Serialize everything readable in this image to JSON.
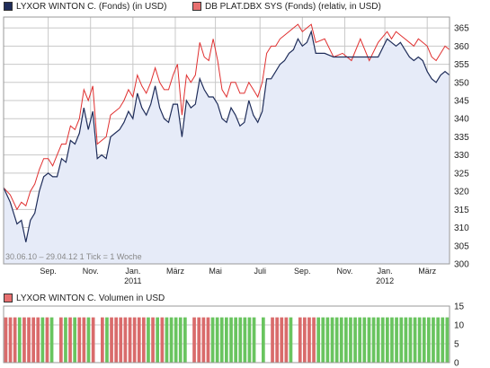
{
  "legend": {
    "series1": "LYXOR WINTON C. (Fonds) (in USD)",
    "series2": "DB PLAT.DBX SYS (Fonds) (relativ, in USD)",
    "volume": "LYXOR WINTON C. Volumen in USD"
  },
  "note": "30.06.10 – 29.04.12   1 Tick = 1 Woche",
  "colors": {
    "series1": "#1f2d5a",
    "series2": "#e03030",
    "area": "#e6ebf8",
    "vol_green": "#69c45f",
    "vol_red": "#d96b6b",
    "grid": "#bbbbbb"
  },
  "chart_data": [
    {
      "type": "line",
      "ylim": [
        300,
        368
      ],
      "yticks": [
        300,
        305,
        310,
        315,
        320,
        325,
        330,
        335,
        340,
        345,
        350,
        355,
        360,
        365
      ],
      "xlim": [
        0,
        100
      ],
      "xticks": [
        {
          "x": 10,
          "label": "Sep."
        },
        {
          "x": 19.5,
          "label": "Nov."
        },
        {
          "x": 29,
          "label": "Jan.",
          "year": "2011"
        },
        {
          "x": 38.5,
          "label": "März"
        },
        {
          "x": 47.5,
          "label": "Mai"
        },
        {
          "x": 57.5,
          "label": "Juli"
        },
        {
          "x": 67,
          "label": "Sep."
        },
        {
          "x": 76.5,
          "label": "Nov."
        },
        {
          "x": 85.5,
          "label": "Jan.",
          "year": "2012"
        },
        {
          "x": 95,
          "label": "März"
        }
      ],
      "grid": true,
      "series": [
        {
          "name": "LYXOR WINTON C. (Fonds) (in USD)",
          "x": [
            0,
            1.5,
            3,
            4,
            5,
            6,
            7,
            8,
            9,
            10,
            11,
            12,
            13,
            14,
            15,
            16,
            17,
            18,
            19,
            20,
            21,
            22,
            23,
            24,
            25,
            26,
            27,
            28,
            29,
            30,
            31,
            32,
            33,
            34,
            35,
            36,
            37,
            38,
            39,
            40,
            41,
            42,
            43,
            44,
            45,
            46,
            47,
            48,
            49,
            50,
            51,
            52,
            53,
            54,
            55,
            56,
            57,
            58,
            59,
            60,
            61,
            62,
            63,
            64,
            65,
            66,
            67,
            68,
            69,
            70,
            72,
            74,
            76,
            78,
            80,
            82,
            84,
            86,
            87,
            88,
            89,
            90,
            91,
            92,
            93,
            94,
            95,
            96,
            97,
            98,
            99,
            100
          ],
          "values": [
            321,
            317,
            311,
            312,
            306,
            312,
            314,
            320,
            324,
            325,
            324,
            324,
            329,
            328,
            334,
            333,
            336,
            343,
            337,
            342,
            329,
            330,
            329,
            335,
            336,
            337,
            339,
            342,
            340,
            347,
            343,
            341,
            344,
            349,
            343,
            340,
            339,
            344,
            344,
            335,
            345,
            343,
            344,
            351,
            348,
            346,
            346,
            344,
            340,
            339,
            343,
            341,
            338,
            339,
            345,
            341,
            339,
            342,
            351,
            351,
            353,
            355,
            356,
            358,
            359,
            362,
            360,
            361,
            364,
            358,
            358,
            357,
            357,
            357,
            357,
            357,
            357,
            362,
            361,
            360,
            361,
            359,
            357,
            356,
            357,
            356,
            353,
            351,
            350,
            352,
            353,
            352
          ]
        },
        {
          "name": "DB PLAT.DBX SYS (Fonds) (relativ, in USD)",
          "x": [
            0,
            1.5,
            3,
            4,
            5,
            6,
            7,
            8,
            9,
            10,
            11,
            12,
            13,
            14,
            15,
            16,
            17,
            18,
            19,
            20,
            21,
            22,
            23,
            24,
            25,
            26,
            27,
            28,
            29,
            30,
            31,
            32,
            33,
            34,
            35,
            36,
            37,
            38,
            39,
            40,
            41,
            42,
            43,
            44,
            45,
            46,
            47,
            48,
            49,
            50,
            51,
            52,
            53,
            54,
            55,
            56,
            57,
            58,
            59,
            60,
            61,
            62,
            63,
            64,
            65,
            66,
            67,
            68,
            69,
            70,
            72,
            74,
            76,
            78,
            80,
            82,
            84,
            86,
            87,
            88,
            89,
            90,
            91,
            92,
            93,
            94,
            95,
            96,
            97,
            98,
            99,
            100
          ],
          "values": [
            321,
            319,
            315,
            317,
            316,
            320,
            322,
            326,
            329,
            329,
            327,
            330,
            333,
            333,
            338,
            337,
            340,
            348,
            345,
            349,
            333,
            334,
            335,
            341,
            342,
            343,
            345,
            348,
            346,
            352,
            349,
            347,
            350,
            354,
            350,
            348,
            348,
            352,
            355,
            341,
            352,
            350,
            352,
            361,
            357,
            356,
            362,
            356,
            348,
            346,
            350,
            350,
            347,
            347,
            350,
            348,
            346,
            350,
            358,
            360,
            360,
            362,
            363,
            364,
            365,
            366,
            364,
            365,
            366,
            361,
            362,
            357,
            358,
            356,
            362,
            356,
            361,
            364,
            362,
            364,
            363,
            362,
            361,
            360,
            362,
            361,
            360,
            357,
            356,
            358,
            360,
            359
          ]
        }
      ]
    },
    {
      "type": "bar",
      "title": "LYXOR WINTON C. Volumen in USD",
      "ylim": [
        0,
        15
      ],
      "yticks": [
        0,
        5,
        10,
        15
      ],
      "values": [
        12,
        12,
        12,
        12,
        12,
        12,
        12,
        12,
        12,
        12,
        12,
        12,
        12,
        12,
        12,
        12,
        12,
        12,
        12,
        12,
        12,
        12,
        12,
        12,
        12,
        12,
        12,
        12,
        12,
        12,
        12,
        12,
        12,
        12,
        12,
        12,
        12,
        12,
        12,
        12,
        12,
        12,
        12,
        12,
        12,
        12,
        12,
        12,
        12,
        12,
        12,
        12,
        12,
        12,
        12,
        12,
        12,
        12,
        12,
        12,
        12,
        12,
        12,
        12,
        12,
        12,
        12,
        12,
        12,
        12,
        12,
        12,
        12,
        12,
        12,
        12,
        12,
        12,
        12,
        12,
        12,
        12,
        12,
        12,
        12,
        12,
        12,
        12,
        12,
        12,
        12,
        12,
        12,
        12,
        12,
        12,
        12
      ],
      "colors": [
        "r",
        "r",
        "r",
        "g",
        "r",
        "r",
        "r",
        "r",
        "g",
        "r",
        "g",
        "r",
        "r",
        "g",
        "r",
        "g",
        "r",
        "r",
        "g",
        "r",
        "g",
        "r",
        "g",
        "r",
        "r",
        "r",
        "r",
        "r",
        "r",
        "r",
        "r",
        "g",
        "r",
        "g",
        "r",
        "g",
        "g",
        "g",
        "g",
        "g",
        "g",
        "r",
        "r",
        "r",
        "r",
        "g",
        "g",
        "g",
        "g",
        "g",
        "g",
        "g",
        "g",
        "g",
        "g",
        "g",
        "g",
        "r",
        "r",
        "r",
        "r",
        "r",
        "g",
        "r",
        "r",
        "r",
        "r",
        "r",
        "g",
        "g",
        "g",
        "g",
        "g",
        "g",
        "g",
        "g",
        "g",
        "g",
        "g",
        "g",
        "g",
        "g",
        "g",
        "g",
        "g",
        "g",
        "g",
        "g",
        "g",
        "g",
        "g",
        "g",
        "g",
        "g",
        "g",
        "g",
        "g"
      ],
      "gaps_after": [
        11,
        20,
        40,
        55,
        57,
        63
      ]
    }
  ]
}
